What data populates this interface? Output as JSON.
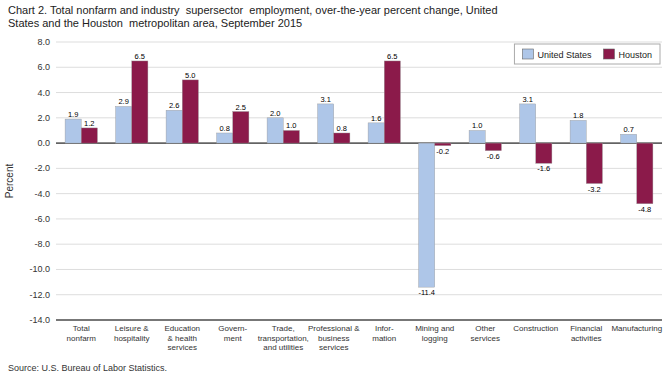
{
  "chart_data": {
    "type": "bar",
    "title": "Chart 2. Total nonfarm and industry  supersector  employment, over-the-year percent change, United\nStates and the Houston  metropolitan area, September 2015",
    "ylabel": "Percent",
    "source": "Source: U.S. Bureau of Labor Statistics.",
    "categories": [
      "Total\nnonfarm",
      "Leisure &\nhospitality",
      "Education\n& health\nservices",
      "Govern-\nment",
      "Trade,\ntransportation,\nand utilities",
      "Professional &\nbusiness\nservices",
      "Infor-\nmation",
      "Mining and\nlogging",
      "Other\nservices",
      "Construction",
      "Financial\nactivities",
      "Manufacturing"
    ],
    "series": [
      {
        "name": "United States",
        "color": "#aec6e8",
        "values": [
          1.9,
          2.9,
          2.6,
          0.8,
          2.0,
          3.1,
          1.6,
          -11.4,
          1.0,
          3.1,
          1.8,
          0.7
        ],
        "value_labels": [
          "1.9",
          "2.9",
          "2.6",
          "0.8",
          "2.0",
          "3.1",
          "1.6",
          "-11.4",
          "1.0",
          "3.1",
          "1.8",
          "0.7"
        ]
      },
      {
        "name": "Houston",
        "color": "#8b1a4a",
        "values": [
          1.2,
          6.5,
          5.0,
          2.5,
          1.0,
          0.8,
          6.5,
          -0.2,
          -0.6,
          -1.6,
          -3.2,
          -4.8
        ],
        "value_labels": [
          "1.2",
          "6.5",
          "5.0",
          "2.5",
          "1.0",
          "0.8",
          "6.5",
          "-0.2",
          "-0.6",
          "-1.6",
          "-3.2",
          "-4.8"
        ]
      }
    ],
    "ylim": [
      -14.0,
      8.0
    ],
    "yticks": [
      {
        "value": -14.0,
        "label": "-14.0"
      },
      {
        "value": -12.0,
        "label": "-12.0"
      },
      {
        "value": -10.0,
        "label": "-10.0"
      },
      {
        "value": -8.0,
        "label": "-8.0"
      },
      {
        "value": -6.0,
        "label": "-6.0"
      },
      {
        "value": -4.0,
        "label": "-4.0"
      },
      {
        "value": -2.0,
        "label": "-2.0"
      },
      {
        "value": 0.0,
        "label": "0.0"
      },
      {
        "value": 2.0,
        "label": "2.0"
      },
      {
        "value": 4.0,
        "label": "4.0"
      },
      {
        "value": 6.0,
        "label": "6.0"
      },
      {
        "value": 8.0,
        "label": "8.0"
      }
    ],
    "grid": true,
    "legend": "upper right",
    "data_labels": true
  }
}
